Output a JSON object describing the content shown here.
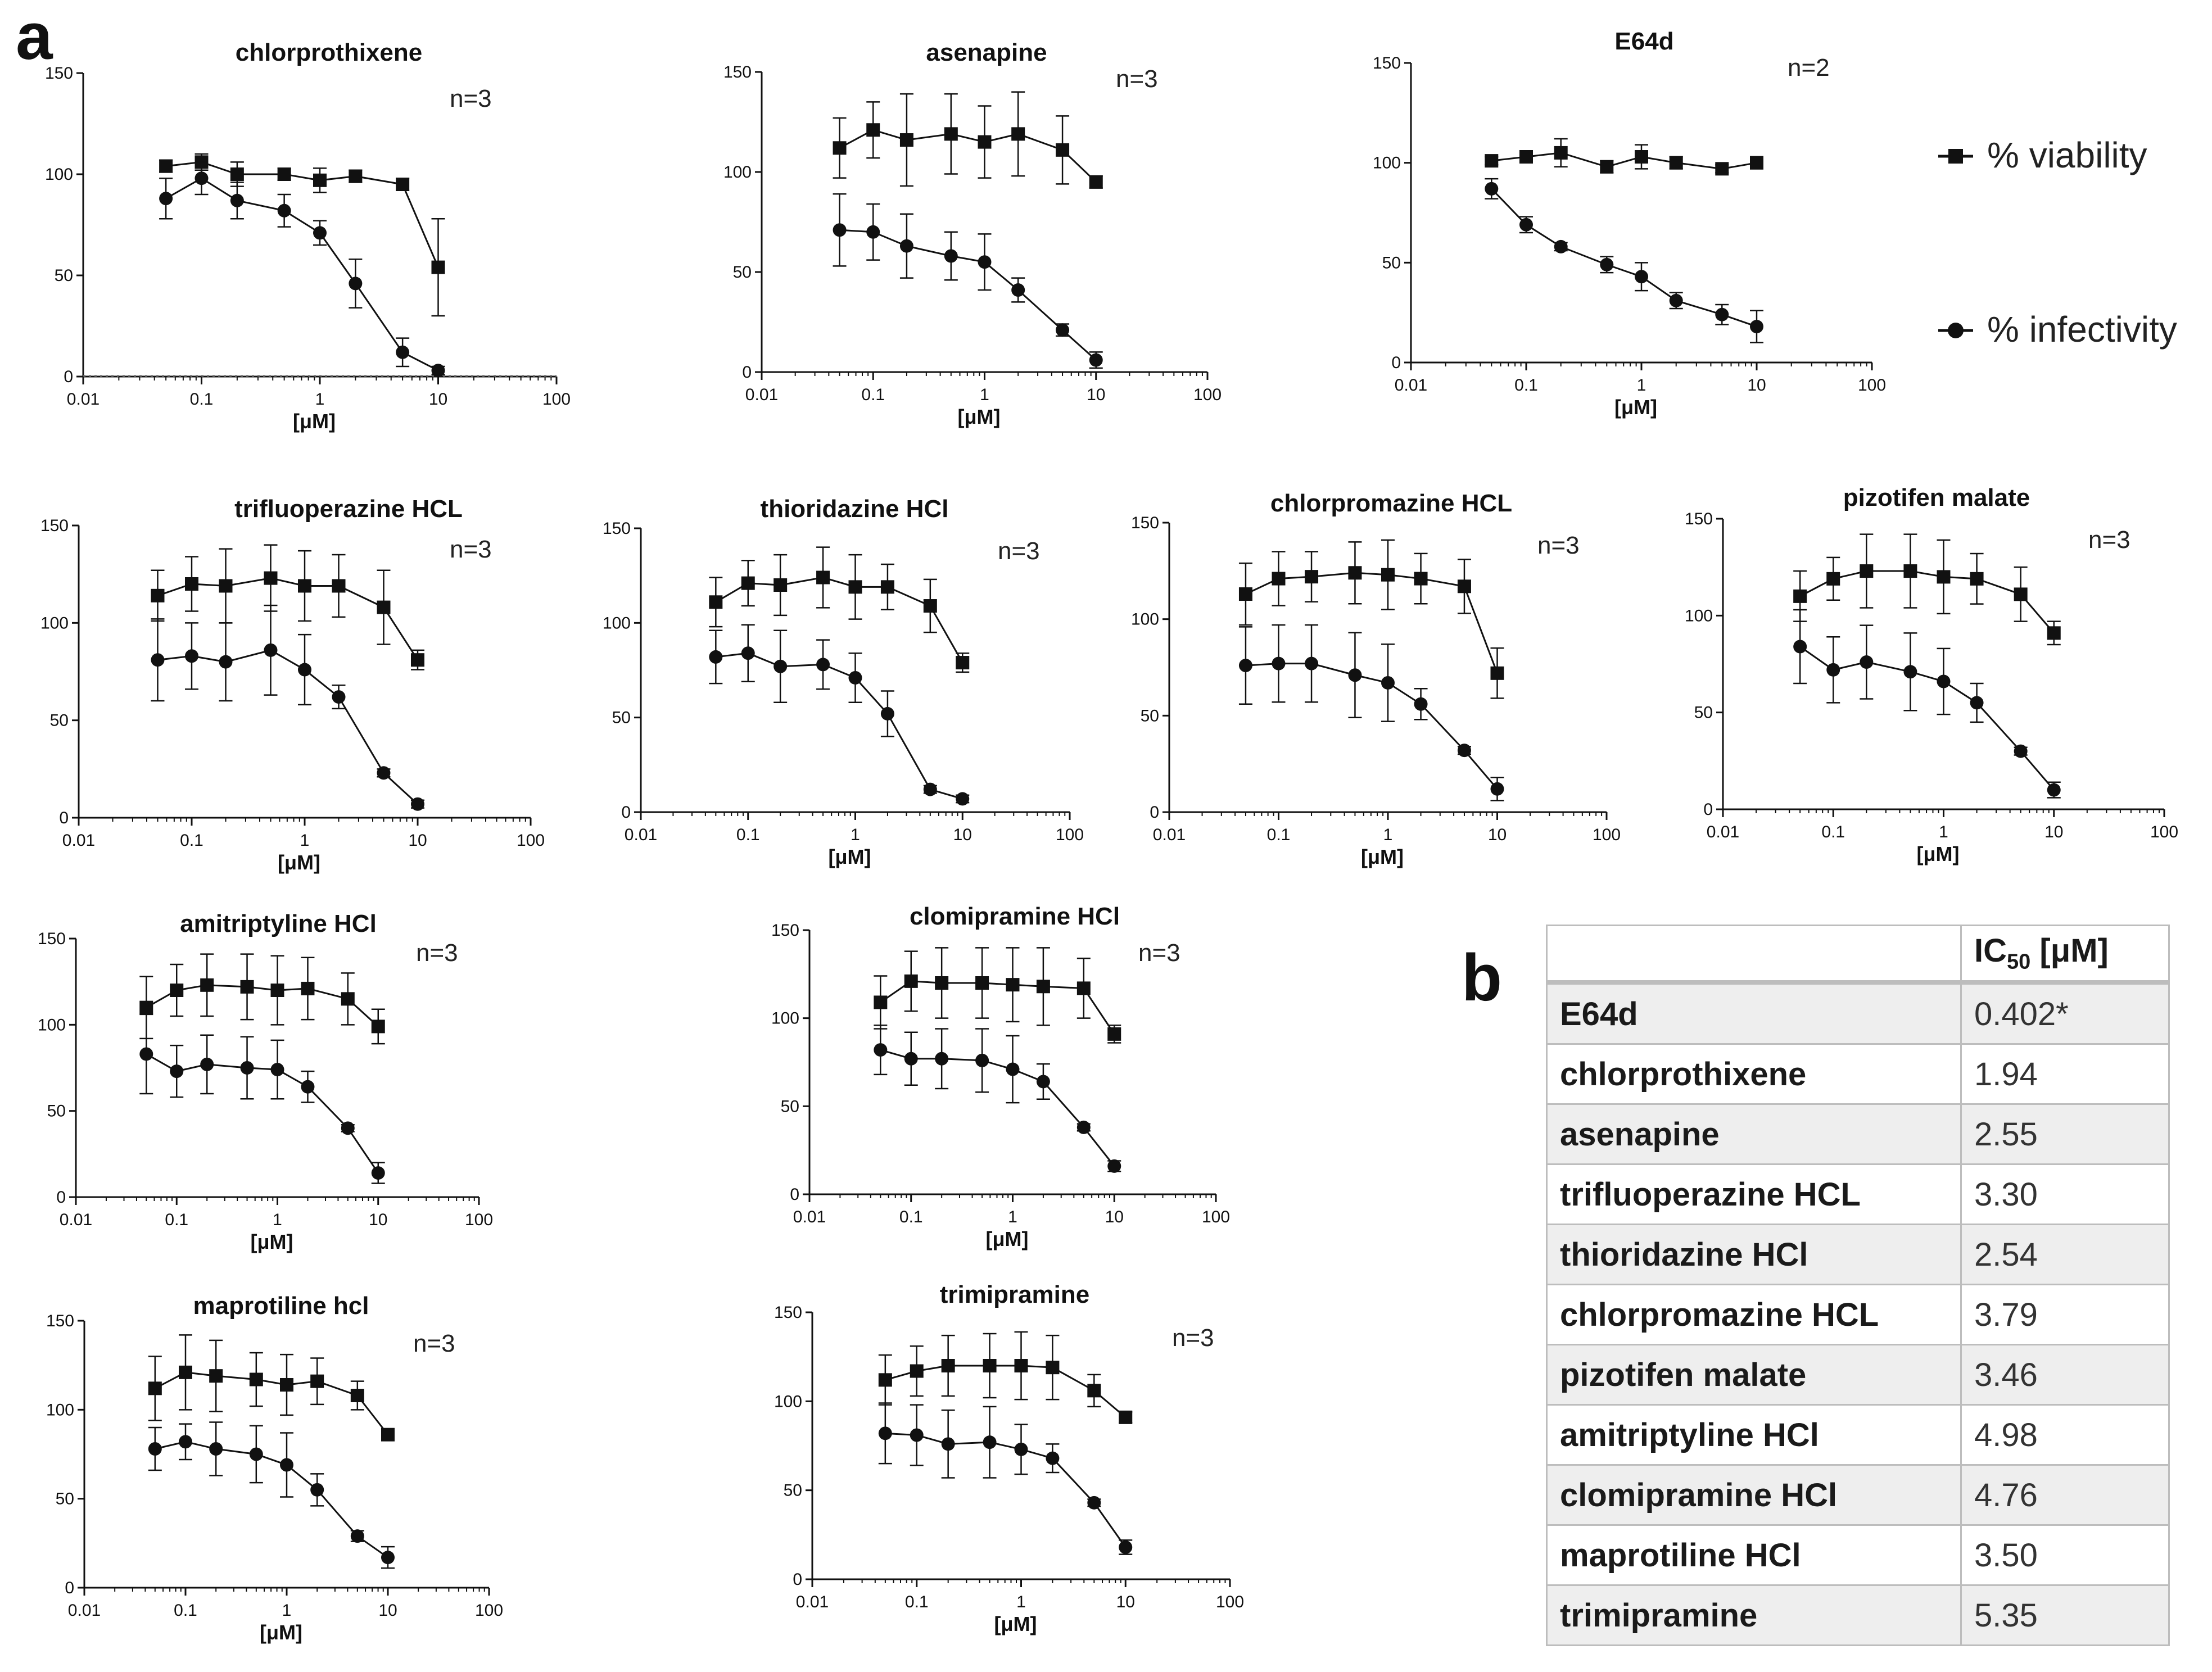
{
  "panel_labels": {
    "a": "a",
    "b": "b"
  },
  "legend": {
    "viability": "% viability",
    "infectivity": "% infectivity"
  },
  "colors": {
    "ink": "#111111",
    "table_border": "#bdbdbd",
    "table_alt_row": "#eeeeee"
  },
  "chart_data": [
    {
      "type": "line",
      "title": "chlorprothixene",
      "n_label": "n=3",
      "xlabel": "[μM]",
      "ylabel": "",
      "xscale": "log",
      "xlim": [
        0.01,
        100
      ],
      "ylim": [
        0,
        150
      ],
      "xticks": [
        "0.01",
        "0.1",
        "1",
        "10",
        "100"
      ],
      "yticks": [
        "0",
        "50",
        "100",
        "150"
      ],
      "dotted_baseline": true,
      "x": [
        0.05,
        0.1,
        0.2,
        0.5,
        1,
        2,
        5,
        10
      ],
      "series": [
        {
          "name": "% viability",
          "marker": "square",
          "values": [
            104,
            106,
            100,
            100,
            97,
            99,
            95,
            54
          ],
          "errors": [
            3,
            4,
            6,
            3,
            6,
            3,
            3,
            24
          ]
        },
        {
          "name": "% infectivity",
          "marker": "circle",
          "values": [
            88,
            98,
            87,
            82,
            71,
            46,
            12,
            3
          ],
          "errors": [
            10,
            8,
            9,
            8,
            6,
            12,
            7,
            2
          ]
        }
      ]
    },
    {
      "type": "line",
      "title": "asenapine",
      "n_label": "n=3",
      "xlabel": "[μM]",
      "ylabel": "",
      "xscale": "log",
      "xlim": [
        0.01,
        100
      ],
      "ylim": [
        0,
        150
      ],
      "xticks": [
        "0.01",
        "0.1",
        "1",
        "10",
        "100"
      ],
      "yticks": [
        "0",
        "50",
        "100",
        "150"
      ],
      "x": [
        0.05,
        0.1,
        0.2,
        0.5,
        1,
        2,
        5,
        10
      ],
      "series": [
        {
          "name": "% viability",
          "marker": "square",
          "values": [
            112,
            121,
            116,
            119,
            115,
            119,
            111,
            95
          ],
          "errors": [
            15,
            14,
            23,
            20,
            18,
            21,
            17,
            3
          ]
        },
        {
          "name": "% infectivity",
          "marker": "circle",
          "values": [
            71,
            70,
            63,
            58,
            55,
            41,
            21,
            6
          ],
          "errors": [
            18,
            14,
            16,
            12,
            14,
            6,
            3,
            4
          ]
        }
      ]
    },
    {
      "type": "line",
      "title": "E64d",
      "n_label": "n=2",
      "xlabel": "[μM]",
      "ylabel": "",
      "xscale": "log",
      "xlim": [
        0.01,
        100
      ],
      "ylim": [
        0,
        150
      ],
      "xticks": [
        "0.01",
        "0.1",
        "1",
        "10",
        "100"
      ],
      "yticks": [
        "0",
        "50",
        "100",
        "150"
      ],
      "x": [
        0.05,
        0.1,
        0.2,
        0.5,
        1,
        2,
        5,
        10
      ],
      "series": [
        {
          "name": "% viability",
          "marker": "square",
          "values": [
            101,
            103,
            105,
            98,
            103,
            100,
            97,
            100
          ],
          "errors": [
            2,
            3,
            7,
            3,
            6,
            3,
            2,
            3
          ]
        },
        {
          "name": "% infectivity",
          "marker": "circle",
          "values": [
            87,
            69,
            58,
            49,
            43,
            31,
            24,
            18
          ],
          "errors": [
            5,
            4,
            2,
            4,
            7,
            4,
            5,
            8
          ]
        }
      ]
    },
    {
      "type": "line",
      "title": "trifluoperazine HCL",
      "n_label": "n=3",
      "xlabel": "[μM]",
      "ylabel": "",
      "xscale": "log",
      "xlim": [
        0.01,
        100
      ],
      "ylim": [
        0,
        150
      ],
      "xticks": [
        "0.01",
        "0.1",
        "1",
        "10",
        "100"
      ],
      "yticks": [
        "0",
        "50",
        "100",
        "150"
      ],
      "x": [
        0.05,
        0.1,
        0.2,
        0.5,
        1,
        2,
        5,
        10
      ],
      "series": [
        {
          "name": "% viability",
          "marker": "square",
          "values": [
            114,
            120,
            119,
            123,
            119,
            119,
            108,
            81
          ],
          "errors": [
            13,
            14,
            19,
            17,
            18,
            16,
            19,
            5
          ]
        },
        {
          "name": "% infectivity",
          "marker": "circle",
          "values": [
            81,
            83,
            80,
            86,
            76,
            62,
            23,
            7
          ],
          "errors": [
            21,
            17,
            20,
            23,
            18,
            6,
            2,
            2
          ]
        }
      ]
    },
    {
      "type": "line",
      "title": "thioridazine HCl",
      "n_label": "n=3",
      "xlabel": "[μM]",
      "ylabel": "",
      "xscale": "log",
      "xlim": [
        0.01,
        100
      ],
      "ylim": [
        0,
        150
      ],
      "xticks": [
        "0.01",
        "0.1",
        "1",
        "10",
        "100"
      ],
      "yticks": [
        "0",
        "50",
        "100",
        "150"
      ],
      "x": [
        0.05,
        0.1,
        0.2,
        0.5,
        1,
        2,
        5,
        10
      ],
      "series": [
        {
          "name": "% viability",
          "marker": "square",
          "values": [
            111,
            121,
            120,
            124,
            119,
            119,
            109,
            79
          ],
          "errors": [
            13,
            12,
            16,
            16,
            17,
            12,
            14,
            5
          ]
        },
        {
          "name": "% infectivity",
          "marker": "circle",
          "values": [
            82,
            84,
            77,
            78,
            71,
            52,
            12,
            7
          ],
          "errors": [
            14,
            15,
            19,
            13,
            13,
            12,
            2,
            2
          ]
        }
      ]
    },
    {
      "type": "line",
      "title": "chlorpromazine HCL",
      "n_label": "n=3",
      "xlabel": "[μM]",
      "ylabel": "",
      "xscale": "log",
      "xlim": [
        0.01,
        100
      ],
      "ylim": [
        0,
        150
      ],
      "xticks": [
        "0.01",
        "0.1",
        "1",
        "10",
        "100"
      ],
      "yticks": [
        "0",
        "50",
        "100",
        "150"
      ],
      "x": [
        0.05,
        0.1,
        0.2,
        0.5,
        1,
        2,
        5,
        10
      ],
      "series": [
        {
          "name": "% viability",
          "marker": "square",
          "values": [
            113,
            121,
            122,
            124,
            123,
            121,
            117,
            72
          ],
          "errors": [
            16,
            14,
            13,
            16,
            18,
            13,
            14,
            13
          ]
        },
        {
          "name": "% infectivity",
          "marker": "circle",
          "values": [
            76,
            77,
            77,
            71,
            67,
            56,
            32,
            12
          ],
          "errors": [
            20,
            20,
            20,
            22,
            20,
            8,
            2,
            6
          ]
        }
      ]
    },
    {
      "type": "line",
      "title": "pizotifen malate",
      "n_label": "n=3",
      "xlabel": "[μM]",
      "ylabel": "",
      "xscale": "log",
      "xlim": [
        0.01,
        100
      ],
      "ylim": [
        0,
        150
      ],
      "xticks": [
        "0.01",
        "0.1",
        "1",
        "10",
        "100"
      ],
      "yticks": [
        "0",
        "50",
        "100",
        "150"
      ],
      "x": [
        0.05,
        0.1,
        0.2,
        0.5,
        1,
        2,
        5,
        10
      ],
      "series": [
        {
          "name": "% viability",
          "marker": "square",
          "values": [
            110,
            119,
            123,
            123,
            120,
            119,
            111,
            91
          ],
          "errors": [
            13,
            11,
            19,
            19,
            19,
            13,
            14,
            6
          ]
        },
        {
          "name": "% infectivity",
          "marker": "circle",
          "values": [
            84,
            72,
            76,
            71,
            66,
            55,
            30,
            10
          ],
          "errors": [
            19,
            17,
            19,
            20,
            17,
            10,
            2,
            4
          ]
        }
      ]
    },
    {
      "type": "line",
      "title": "amitriptyline HCl",
      "n_label": "n=3",
      "xlabel": "[μM]",
      "ylabel": "",
      "xscale": "log",
      "xlim": [
        0.01,
        100
      ],
      "ylim": [
        0,
        150
      ],
      "xticks": [
        "0.01",
        "0.1",
        "1",
        "10",
        "100"
      ],
      "yticks": [
        "0",
        "50",
        "100",
        "150"
      ],
      "x": [
        0.05,
        0.1,
        0.2,
        0.5,
        1,
        2,
        5,
        10
      ],
      "series": [
        {
          "name": "% viability",
          "marker": "square",
          "values": [
            110,
            120,
            123,
            122,
            120,
            121,
            115,
            99
          ],
          "errors": [
            18,
            15,
            18,
            19,
            20,
            18,
            15,
            10
          ]
        },
        {
          "name": "% infectivity",
          "marker": "circle",
          "values": [
            83,
            73,
            77,
            75,
            74,
            64,
            40,
            14
          ],
          "errors": [
            23,
            15,
            17,
            18,
            17,
            9,
            2,
            6
          ]
        }
      ]
    },
    {
      "type": "line",
      "title": "clomipramine HCl",
      "n_label": "n=3",
      "xlabel": "[μM]",
      "ylabel": "",
      "xscale": "log",
      "xlim": [
        0.01,
        100
      ],
      "ylim": [
        0,
        150
      ],
      "xticks": [
        "0.01",
        "0.1",
        "1",
        "10",
        "100"
      ],
      "yticks": [
        "0",
        "50",
        "100",
        "150"
      ],
      "x": [
        0.05,
        0.1,
        0.2,
        0.5,
        1,
        2,
        5,
        10
      ],
      "series": [
        {
          "name": "% viability",
          "marker": "square",
          "values": [
            109,
            121,
            120,
            120,
            119,
            118,
            117,
            91
          ],
          "errors": [
            15,
            17,
            20,
            20,
            21,
            22,
            17,
            5
          ]
        },
        {
          "name": "% infectivity",
          "marker": "circle",
          "values": [
            82,
            77,
            77,
            76,
            71,
            64,
            38,
            16
          ],
          "errors": [
            14,
            15,
            17,
            18,
            19,
            10,
            2,
            3
          ]
        }
      ]
    },
    {
      "type": "line",
      "title": "maprotiline hcl",
      "n_label": "n=3",
      "xlabel": "[μM]",
      "ylabel": "",
      "xscale": "log",
      "xlim": [
        0.01,
        100
      ],
      "ylim": [
        0,
        150
      ],
      "xticks": [
        "0.01",
        "0.1",
        "1",
        "10",
        "100"
      ],
      "yticks": [
        "0",
        "50",
        "100",
        "150"
      ],
      "x": [
        0.05,
        0.1,
        0.2,
        0.5,
        1,
        2,
        5,
        10
      ],
      "series": [
        {
          "name": "% viability",
          "marker": "square",
          "values": [
            112,
            121,
            119,
            117,
            114,
            116,
            108,
            86
          ],
          "errors": [
            18,
            21,
            20,
            15,
            17,
            13,
            8,
            3
          ]
        },
        {
          "name": "% infectivity",
          "marker": "circle",
          "values": [
            78,
            82,
            78,
            75,
            69,
            55,
            29,
            17
          ],
          "errors": [
            12,
            10,
            15,
            16,
            18,
            9,
            3,
            6
          ]
        }
      ]
    },
    {
      "type": "line",
      "title": "trimipramine",
      "n_label": "n=3",
      "xlabel": "[μM]",
      "ylabel": "",
      "xscale": "log",
      "xlim": [
        0.01,
        100
      ],
      "ylim": [
        0,
        150
      ],
      "xticks": [
        "0.01",
        "0.1",
        "1",
        "10",
        "100"
      ],
      "yticks": [
        "0",
        "50",
        "100",
        "150"
      ],
      "x": [
        0.05,
        0.1,
        0.2,
        0.5,
        1,
        2,
        5,
        10
      ],
      "series": [
        {
          "name": "% viability",
          "marker": "square",
          "values": [
            112,
            117,
            120,
            120,
            120,
            119,
            106,
            91
          ],
          "errors": [
            14,
            14,
            17,
            18,
            19,
            18,
            9,
            3
          ]
        },
        {
          "name": "% infectivity",
          "marker": "circle",
          "values": [
            82,
            81,
            76,
            77,
            73,
            68,
            43,
            18
          ],
          "errors": [
            17,
            17,
            19,
            20,
            14,
            8,
            2,
            4
          ]
        }
      ]
    },
    {
      "type": "table",
      "title": "",
      "columns": [
        "",
        "IC50 [μM]"
      ],
      "header_main": "IC",
      "header_sub": "50",
      "header_unit": " [μM]",
      "rows": [
        {
          "drug": "E64d",
          "ic50": "0.402*"
        },
        {
          "drug": "chlorprothixene",
          "ic50": "1.94"
        },
        {
          "drug": "asenapine",
          "ic50": "2.55"
        },
        {
          "drug": "trifluoperazine HCL",
          "ic50": "3.30"
        },
        {
          "drug": "thioridazine HCl",
          "ic50": "2.54"
        },
        {
          "drug": "chlorpromazine HCL",
          "ic50": "3.79"
        },
        {
          "drug": "pizotifen malate",
          "ic50": "3.46"
        },
        {
          "drug": "amitriptyline  HCl",
          "ic50": "4.98"
        },
        {
          "drug": "clomipramine HCl",
          "ic50": "4.76"
        },
        {
          "drug": "maprotiline  HCl",
          "ic50": "3.50"
        },
        {
          "drug": "trimipramine",
          "ic50": "5.35"
        }
      ]
    }
  ]
}
